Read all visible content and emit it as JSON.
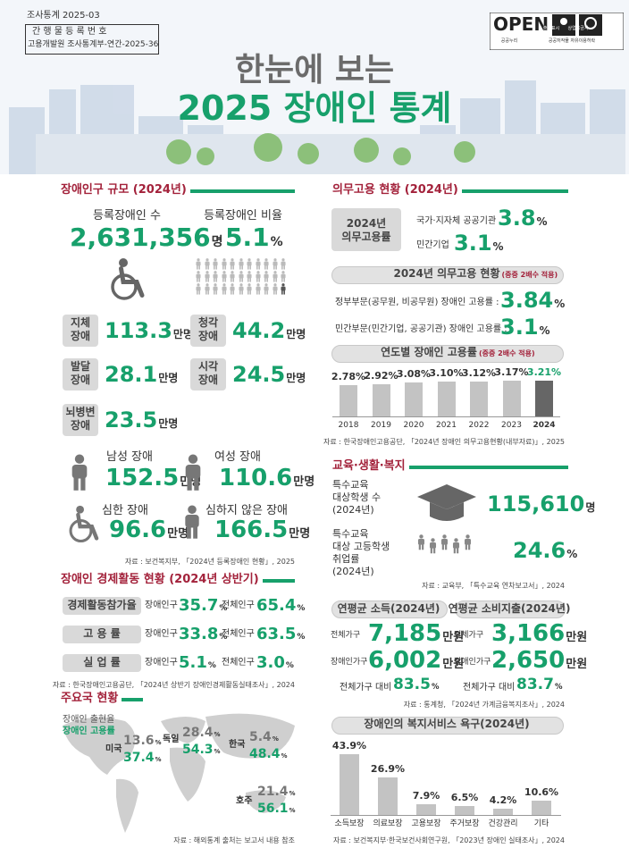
{
  "header": {
    "series": "조사통계 2025-03",
    "reg_label": "간 행 물   등 록 번 호",
    "reg_number": "고용개발원 조사통계부-연간-2025-36",
    "open": "OPEN",
    "license": [
      "공공누리",
      "출처표시",
      "상업용금지",
      "공공저작물 자유이용허락"
    ],
    "title_line1": "한눈에 보는",
    "title_line2": "2025 장애인 통계"
  },
  "population": {
    "title": "장애인구 규모 (2024년)",
    "registered": {
      "label": "등록장애인 수",
      "value": "2,631,356",
      "unit": "명"
    },
    "ratio": {
      "label": "등록장애인 비율",
      "value": "5.1",
      "unit": "%"
    },
    "types": [
      {
        "label": [
          "지체",
          "장애"
        ],
        "value": "113.3",
        "unit": "만명"
      },
      {
        "label": [
          "청각",
          "장애"
        ],
        "value": "44.2",
        "unit": "만명"
      },
      {
        "label": [
          "발달",
          "장애"
        ],
        "value": "28.1",
        "unit": "만명"
      },
      {
        "label": [
          "시각",
          "장애"
        ],
        "value": "24.5",
        "unit": "만명"
      },
      {
        "label": [
          "뇌병변",
          "장애"
        ],
        "value": "23.5",
        "unit": "만명"
      }
    ],
    "groups": [
      {
        "label": "남성 장애",
        "value": "152.5",
        "unit": "만명"
      },
      {
        "label": "여성 장애",
        "value": "110.6",
        "unit": "만명"
      },
      {
        "label": "심한 장애",
        "value": "96.6",
        "unit": "만명"
      },
      {
        "label": "심하지 않은 장애",
        "value": "166.5",
        "unit": "만명"
      }
    ],
    "source": "자료 : 보건복지부, 「2024년 등록장애인 현황」, 2025"
  },
  "economic": {
    "title": "장애인 경제활동 현황 (2024년 상반기)",
    "disabled_label": "장애인구",
    "total_label": "전체인구",
    "unit": "%",
    "rows": [
      {
        "label": "경제활동참가율",
        "disabled": "35.7",
        "total": "65.4"
      },
      {
        "label": "고   용   률",
        "disabled": "33.8",
        "total": "63.5"
      },
      {
        "label": "실   업   률",
        "disabled": "5.1",
        "total": "3.0"
      }
    ],
    "source": "자료 : 한국장애인고용공단, 「2024년 상반기 장애인경제활동실태조사」, 2024"
  },
  "countries": {
    "title": "주요국 현황",
    "legend": [
      "장애인 출현율",
      "장애인 고용률"
    ],
    "unit": "%",
    "items": [
      {
        "name": "미국",
        "prevalence": "13.6",
        "employment": "37.4"
      },
      {
        "name": "독일",
        "prevalence": "28.4",
        "employment": "54.3"
      },
      {
        "name": "한국",
        "prevalence": "5.4",
        "employment": "48.4"
      },
      {
        "name": "호주",
        "prevalence": "21.4",
        "employment": "56.1"
      }
    ],
    "source": "자료 : 해외통계 출처는 보고서 내용 참조"
  },
  "mandatory": {
    "title": "의무고용 현황 (2024년)",
    "box": [
      "2024년",
      "의무고용률"
    ],
    "unit": "%",
    "rows": [
      {
        "label": "국가·지자체 공공기관",
        "value": "3.8"
      },
      {
        "label": "민간기업",
        "value": "3.1"
      }
    ],
    "status": {
      "title": "2024년 의무고용 현황",
      "note": "(중증 2배수 적용)",
      "rows": [
        {
          "label": "정부부문(공무원, 비공무원) 장애인 고용률 :",
          "value": "3.84"
        },
        {
          "label": "민간부문(민간기업, 공공기관) 장애인 고용률 :",
          "value": "3.1"
        }
      ]
    },
    "chart": {
      "type": "bar",
      "title": "연도별 장애인 고용률",
      "note": "(중증 2배수 적용)",
      "categories": [
        "2018",
        "2019",
        "2020",
        "2021",
        "2022",
        "2023",
        "2024"
      ],
      "values": [
        2.78,
        2.92,
        3.08,
        3.1,
        3.12,
        3.17,
        3.21
      ],
      "value_labels": [
        "2.78%",
        "2.92%",
        "3.08%",
        "3.10%",
        "3.12%",
        "3.17%",
        "3.21%"
      ],
      "color": "#c3c3c3",
      "highlight_color": "#666666"
    },
    "source": "자료 : 한국장애인고용공단, 「2024년 장애인 의무고용현황(내부자료)」, 2025"
  },
  "education": {
    "title": "교육·생활·복지",
    "items": [
      {
        "label": [
          "특수교육",
          "대상학생 수",
          "(2024년)"
        ],
        "value": "115,610",
        "unit": "명"
      },
      {
        "label": [
          "특수교육",
          "대상 고등학생",
          "취업률",
          "(2024년)"
        ],
        "value": "24.6",
        "unit": "%"
      }
    ],
    "source": "자료 : 교육부, 「특수교육 연차보고서」, 2024"
  },
  "income": {
    "unit": "만원",
    "ratio_label": "전체가구 대비",
    "ratio_unit": "%",
    "panels": [
      {
        "title": "연평균 소득(2024년)",
        "rows": [
          {
            "label": "전체가구",
            "value": "7,185"
          },
          {
            "label": "장애인가구",
            "value": "6,002"
          }
        ],
        "ratio": "83.5"
      },
      {
        "title": "연평균 소비지출(2024년)",
        "rows": [
          {
            "label": "전체가구",
            "value": "3,166"
          },
          {
            "label": "장애인가구",
            "value": "2,650"
          }
        ],
        "ratio": "83.7"
      }
    ],
    "source": "자료 : 통계청, 「2024년 가계금융복지조사」, 2024"
  },
  "welfare": {
    "type": "bar",
    "title": "장애인의 복지서비스 욕구(2024년)",
    "categories": [
      "소득보장",
      "의료보장",
      "고용보장",
      "주거보장",
      "건강관리",
      "기타"
    ],
    "values": [
      43.9,
      26.9,
      7.9,
      6.5,
      4.2,
      10.6
    ],
    "value_labels": [
      "43.9%",
      "26.9%",
      "7.9%",
      "6.5%",
      "4.2%",
      "10.6%"
    ],
    "color": "#c3c3c3",
    "source": "자료 : 보건복지부·한국보건사회연구원, 「2023년 장애인 실태조사」, 2024"
  }
}
